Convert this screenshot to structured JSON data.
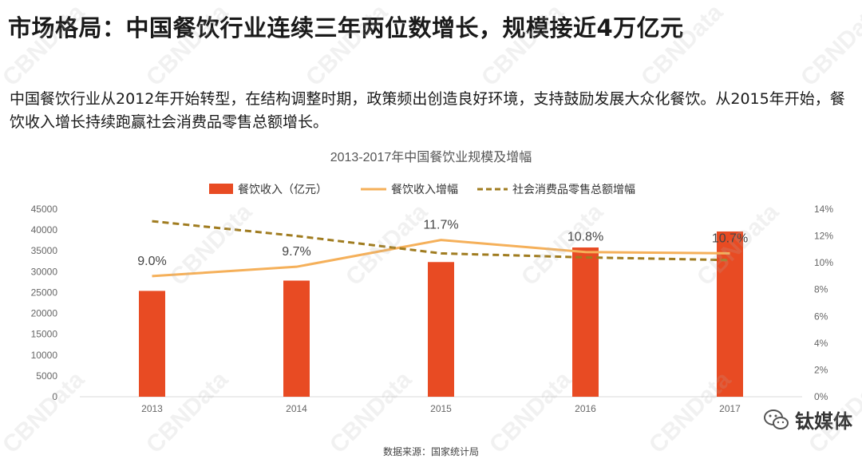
{
  "page": {
    "title": "市场格局：中国餐饮行业连续三年两位数增长，规模接近4万亿元",
    "description": "中国餐饮行业从2012年开始转型，在结构调整时期，政策频出创造良好环境，支持鼓励发展大众化餐饮。从2015年开始，餐饮收入增长持续跑赢社会消费品零售总额增长。",
    "source": "数据来源：国家统计局",
    "watermark": "CBNData",
    "brand": "钛媒体"
  },
  "colors": {
    "bar": "#e84b23",
    "growth": "#f5b05a",
    "retail": "#a07c20",
    "axis": "#666666",
    "grid": "#d9d9d9"
  },
  "chart_data": {
    "type": "bar",
    "title": "2013-2017年中国餐饮业规模及增幅",
    "categories": [
      "2013",
      "2014",
      "2015",
      "2016",
      "2017"
    ],
    "series": [
      {
        "name": "餐饮收入（亿元）",
        "type": "bar",
        "axis": "left",
        "values": [
          25392,
          27860,
          32310,
          35799,
          39644
        ]
      },
      {
        "name": "餐饮收入增幅",
        "type": "line",
        "axis": "right",
        "values": [
          9.0,
          9.7,
          11.7,
          10.8,
          10.7
        ],
        "labels": [
          "9.0%",
          "9.7%",
          "11.7%",
          "10.8%",
          "10.7%"
        ]
      },
      {
        "name": "社会消费品零售总额增幅",
        "type": "line",
        "style": "dashed",
        "axis": "right",
        "values": [
          13.1,
          12.0,
          10.7,
          10.4,
          10.2
        ]
      }
    ],
    "y_left": {
      "min": 0,
      "max": 45000,
      "ticks": [
        "0",
        "5000",
        "10000",
        "15000",
        "20000",
        "25000",
        "30000",
        "35000",
        "40000",
        "45000"
      ]
    },
    "y_right": {
      "min": 0,
      "max": 14,
      "ticks": [
        "0%",
        "2%",
        "4%",
        "6%",
        "8%",
        "10%",
        "12%",
        "14%"
      ]
    },
    "legend_position": "top"
  }
}
